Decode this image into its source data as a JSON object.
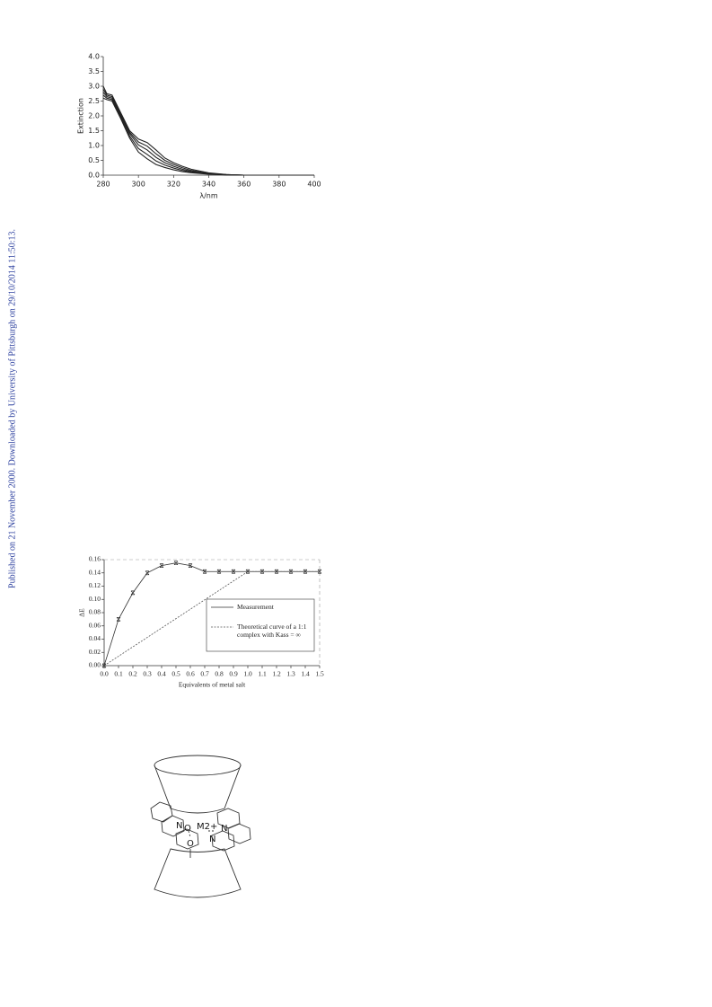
{
  "side_note": "Published on 21 November 2000. Downloaded by University of Pittsburgh on 29/10/2014 11:50:13.",
  "chart_data": [
    {
      "type": "line",
      "xlabel": "λ/nm",
      "ylabel": "Extinction",
      "x": [
        280,
        282,
        285,
        290,
        295,
        300,
        305,
        310,
        315,
        320,
        325,
        330,
        340,
        350,
        360,
        380,
        400
      ],
      "series": [
        {
          "color": "#222222",
          "values": [
            3.0,
            2.75,
            2.7,
            2.1,
            1.5,
            1.22,
            1.1,
            0.85,
            0.58,
            0.42,
            0.3,
            0.2,
            0.08,
            0.02,
            0.0,
            0.0,
            0.0
          ]
        },
        {
          "color": "#222222",
          "values": [
            2.9,
            2.7,
            2.65,
            2.05,
            1.45,
            1.12,
            0.98,
            0.72,
            0.5,
            0.36,
            0.25,
            0.16,
            0.06,
            0.02,
            0.0,
            0.0,
            0.0
          ]
        },
        {
          "color": "#222222",
          "values": [
            2.8,
            2.65,
            2.6,
            2.0,
            1.4,
            1.02,
            0.85,
            0.6,
            0.42,
            0.3,
            0.2,
            0.13,
            0.05,
            0.01,
            0.0,
            0.0,
            0.0
          ]
        },
        {
          "color": "#222222",
          "values": [
            2.7,
            2.6,
            2.55,
            1.95,
            1.32,
            0.9,
            0.7,
            0.48,
            0.34,
            0.24,
            0.16,
            0.1,
            0.04,
            0.01,
            0.0,
            0.0,
            0.0
          ]
        },
        {
          "color": "#222222",
          "values": [
            2.6,
            2.55,
            2.5,
            1.9,
            1.25,
            0.78,
            0.55,
            0.36,
            0.26,
            0.18,
            0.12,
            0.08,
            0.03,
            0.01,
            0.0,
            0.0,
            0.0
          ]
        }
      ],
      "xlim": [
        280,
        400
      ],
      "xticks": [
        280,
        300,
        320,
        340,
        360,
        380,
        400
      ],
      "ylim": [
        0,
        4
      ],
      "yticks": [
        {
          "value": 0,
          "label": "0.0"
        },
        0.5,
        {
          "value": 1,
          "label": "1.0"
        },
        1.5,
        {
          "value": 2,
          "label": "2.0"
        },
        2.5,
        {
          "value": 3,
          "label": "3.0"
        },
        3.5,
        {
          "value": 4,
          "label": "4.0"
        }
      ]
    },
    {
      "type": "line",
      "xlabel": "Equivalents of metal salt",
      "ylabel": "ΔE",
      "x": [
        0,
        0.1,
        0.2,
        0.3,
        0.4,
        0.5,
        0.6,
        0.7,
        0.8,
        0.9,
        1.0,
        1.1,
        1.2,
        1.3,
        1.4,
        1.5
      ],
      "series": [
        {
          "name": "Measurement",
          "color": "#333333",
          "marker": "x",
          "line_style": "solid",
          "values": [
            0,
            0.07,
            0.11,
            0.14,
            0.151,
            0.155,
            0.151,
            0.142,
            0.142,
            0.142,
            0.142,
            0.142,
            0.142,
            0.142,
            0.142,
            0.142
          ]
        },
        {
          "name": "Theoretical curve of a 1:1 complex with Kass = ∞",
          "color": "#555555",
          "line_style": "dashed",
          "values": [
            0,
            0.0142,
            0.0284,
            0.0426,
            0.0568,
            0.071,
            0.0852,
            0.0994,
            0.1136,
            0.1278,
            0.142,
            0.142,
            0.142,
            0.142,
            0.142,
            0.142
          ]
        }
      ],
      "xlim": [
        0,
        1.5
      ],
      "xticks": [
        {
          "value": 0,
          "label": "0.0"
        },
        0.1,
        0.2,
        0.3,
        0.4,
        0.5,
        0.6,
        0.7,
        0.8,
        0.9,
        {
          "value": 1,
          "label": "1.0"
        },
        1.1,
        1.2,
        1.3,
        1.4,
        1.5
      ],
      "ylim": [
        0,
        0.16
      ],
      "yticks": [
        {
          "value": 0,
          "label": "0.00"
        },
        0.02,
        0.04,
        0.06,
        0.08,
        {
          "value": 0.1,
          "label": "0.10"
        },
        0.12,
        0.14,
        0.16
      ],
      "legend": "right"
    }
  ],
  "diagram": {
    "labels": [
      "N",
      "O",
      "M2+",
      "N",
      "N",
      "O"
    ]
  }
}
